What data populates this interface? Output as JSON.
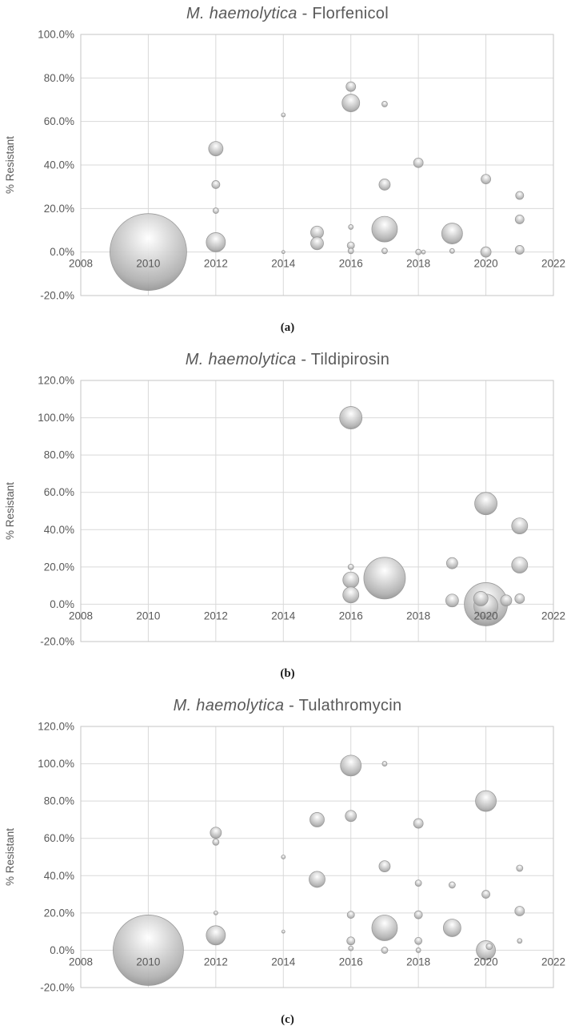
{
  "page": {
    "background": "#ffffff"
  },
  "chart_data": [
    {
      "type": "bubble",
      "title_italic": "M. haemolytica",
      "title_rest": " - Florfenicol",
      "sublabel": "(a)",
      "ylabel": "% Resistant",
      "xlim": [
        2008,
        2022
      ],
      "xticks": [
        2008,
        2010,
        2012,
        2014,
        2016,
        2018,
        2020,
        2022
      ],
      "ylim": [
        -20,
        100
      ],
      "ytick": 20,
      "grid": true,
      "legend": "none",
      "bubble_fill": "#bfbfbf",
      "points": [
        {
          "x": 2010,
          "y": 0,
          "r": 48
        },
        {
          "x": 2012,
          "y": 47.5,
          "r": 9
        },
        {
          "x": 2012,
          "y": 31,
          "r": 5
        },
        {
          "x": 2012,
          "y": 19,
          "r": 3.5
        },
        {
          "x": 2012,
          "y": 4.5,
          "r": 12
        },
        {
          "x": 2014,
          "y": 63,
          "r": 2.5
        },
        {
          "x": 2014,
          "y": 0,
          "r": 2
        },
        {
          "x": 2015,
          "y": 9,
          "r": 8
        },
        {
          "x": 2015,
          "y": 4,
          "r": 8
        },
        {
          "x": 2016,
          "y": 76,
          "r": 6
        },
        {
          "x": 2016,
          "y": 68.5,
          "r": 11
        },
        {
          "x": 2016,
          "y": 11.5,
          "r": 3
        },
        {
          "x": 2016,
          "y": 3,
          "r": 4.5
        },
        {
          "x": 2016,
          "y": 0.5,
          "r": 3.5
        },
        {
          "x": 2017,
          "y": 68,
          "r": 3.5
        },
        {
          "x": 2017,
          "y": 31,
          "r": 7
        },
        {
          "x": 2017,
          "y": 10.5,
          "r": 16
        },
        {
          "x": 2017,
          "y": 0.5,
          "r": 3.5
        },
        {
          "x": 2018,
          "y": 41,
          "r": 6
        },
        {
          "x": 2018,
          "y": 0,
          "r": 3.5
        },
        {
          "x": 2018.15,
          "y": 0,
          "r": 2.5
        },
        {
          "x": 2019,
          "y": 8.5,
          "r": 13
        },
        {
          "x": 2019,
          "y": 0.5,
          "r": 3
        },
        {
          "x": 2020,
          "y": 33.5,
          "r": 6
        },
        {
          "x": 2020,
          "y": 0,
          "r": 6.5
        },
        {
          "x": 2021,
          "y": 26,
          "r": 5
        },
        {
          "x": 2021,
          "y": 15,
          "r": 5.5
        },
        {
          "x": 2021,
          "y": 1,
          "r": 5.5
        }
      ]
    },
    {
      "type": "bubble",
      "title_italic": "M. haemolytica",
      "title_rest": " - Tildipirosin",
      "sublabel": "(b)",
      "ylabel": "% Resistant",
      "xlim": [
        2008,
        2022
      ],
      "xticks": [
        2008,
        2010,
        2012,
        2014,
        2016,
        2018,
        2020,
        2022
      ],
      "ylim": [
        -20,
        120
      ],
      "ytick": 20,
      "grid": true,
      "legend": "none",
      "bubble_fill": "#bfbfbf",
      "points": [
        {
          "x": 2016,
          "y": 100,
          "r": 14
        },
        {
          "x": 2016,
          "y": 20,
          "r": 3.5
        },
        {
          "x": 2016,
          "y": 13,
          "r": 10
        },
        {
          "x": 2016,
          "y": 5,
          "r": 10
        },
        {
          "x": 2017,
          "y": 14,
          "r": 26
        },
        {
          "x": 2019,
          "y": 22,
          "r": 7
        },
        {
          "x": 2019,
          "y": 2,
          "r": 8
        },
        {
          "x": 2020,
          "y": 54,
          "r": 14
        },
        {
          "x": 2020,
          "y": 0,
          "r": 27
        },
        {
          "x": 2020,
          "y": -1,
          "r": 15
        },
        {
          "x": 2019.85,
          "y": 3,
          "r": 9
        },
        {
          "x": 2020.6,
          "y": 2,
          "r": 7
        },
        {
          "x": 2021,
          "y": 42,
          "r": 10
        },
        {
          "x": 2021,
          "y": 21,
          "r": 10
        },
        {
          "x": 2021,
          "y": 3,
          "r": 6
        }
      ]
    },
    {
      "type": "bubble",
      "title_italic": "M. haemolytica",
      "title_rest": " - Tulathromycin",
      "sublabel": "(c)",
      "ylabel": "% Resistant",
      "xlim": [
        2008,
        2022
      ],
      "xticks": [
        2008,
        2010,
        2012,
        2014,
        2016,
        2018,
        2020,
        2022
      ],
      "ylim": [
        -20,
        120
      ],
      "ytick": 20,
      "grid": true,
      "legend": "none",
      "bubble_fill": "#bfbfbf",
      "points": [
        {
          "x": 2010,
          "y": 0,
          "r": 44
        },
        {
          "x": 2012,
          "y": 63,
          "r": 7
        },
        {
          "x": 2012,
          "y": 58,
          "r": 4
        },
        {
          "x": 2012,
          "y": 20,
          "r": 2.5
        },
        {
          "x": 2012,
          "y": 8,
          "r": 12
        },
        {
          "x": 2014,
          "y": 50,
          "r": 2.5
        },
        {
          "x": 2014,
          "y": 10,
          "r": 2
        },
        {
          "x": 2015,
          "y": 70,
          "r": 9
        },
        {
          "x": 2015,
          "y": 38,
          "r": 10
        },
        {
          "x": 2016,
          "y": 99,
          "r": 13
        },
        {
          "x": 2016,
          "y": 72,
          "r": 7
        },
        {
          "x": 2016,
          "y": 19,
          "r": 4.5
        },
        {
          "x": 2016,
          "y": 5,
          "r": 5
        },
        {
          "x": 2016,
          "y": 1,
          "r": 3
        },
        {
          "x": 2017,
          "y": 100,
          "r": 3
        },
        {
          "x": 2017,
          "y": 45,
          "r": 7
        },
        {
          "x": 2017,
          "y": 12,
          "r": 16
        },
        {
          "x": 2017,
          "y": 0,
          "r": 4
        },
        {
          "x": 2018,
          "y": 68,
          "r": 6
        },
        {
          "x": 2018,
          "y": 36,
          "r": 4
        },
        {
          "x": 2018,
          "y": 19,
          "r": 5
        },
        {
          "x": 2018,
          "y": 5,
          "r": 4.5
        },
        {
          "x": 2018,
          "y": 0,
          "r": 3
        },
        {
          "x": 2019,
          "y": 35,
          "r": 4
        },
        {
          "x": 2019,
          "y": 12,
          "r": 11
        },
        {
          "x": 2020,
          "y": 80,
          "r": 13
        },
        {
          "x": 2020,
          "y": 30,
          "r": 5
        },
        {
          "x": 2020,
          "y": 0,
          "r": 12
        },
        {
          "x": 2020.1,
          "y": 2,
          "r": 4
        },
        {
          "x": 2021,
          "y": 44,
          "r": 4
        },
        {
          "x": 2021,
          "y": 21,
          "r": 6
        },
        {
          "x": 2021,
          "y": 5,
          "r": 3
        }
      ]
    }
  ]
}
